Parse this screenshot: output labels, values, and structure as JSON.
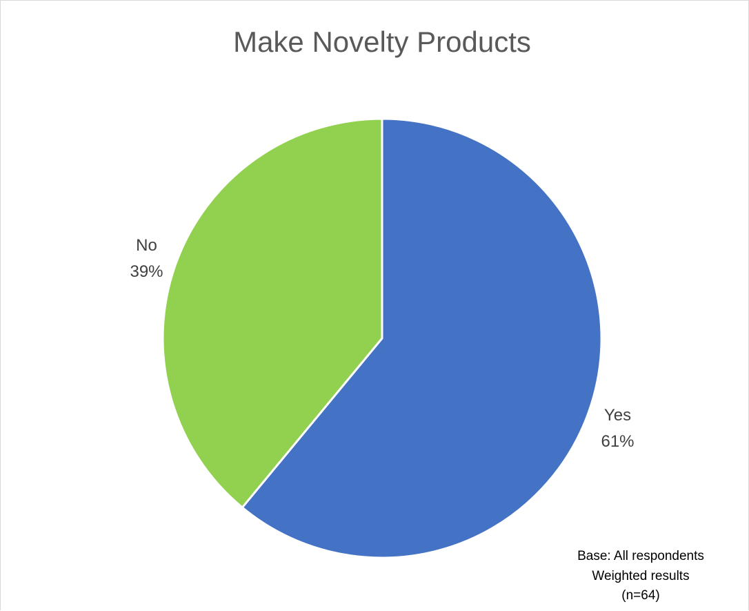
{
  "chart_data": {
    "type": "pie",
    "title": "Make Novelty Products",
    "categories": [
      "Yes",
      "No"
    ],
    "values": [
      61,
      39
    ],
    "value_labels": [
      "61%",
      "39%"
    ],
    "colors": [
      "#4472C4",
      "#92D050"
    ],
    "start_angle_deg": 0,
    "direction": "clockwise",
    "legend": "none",
    "notes": [
      "Base: All respondents",
      "Weighted results",
      "(n=64)"
    ]
  }
}
